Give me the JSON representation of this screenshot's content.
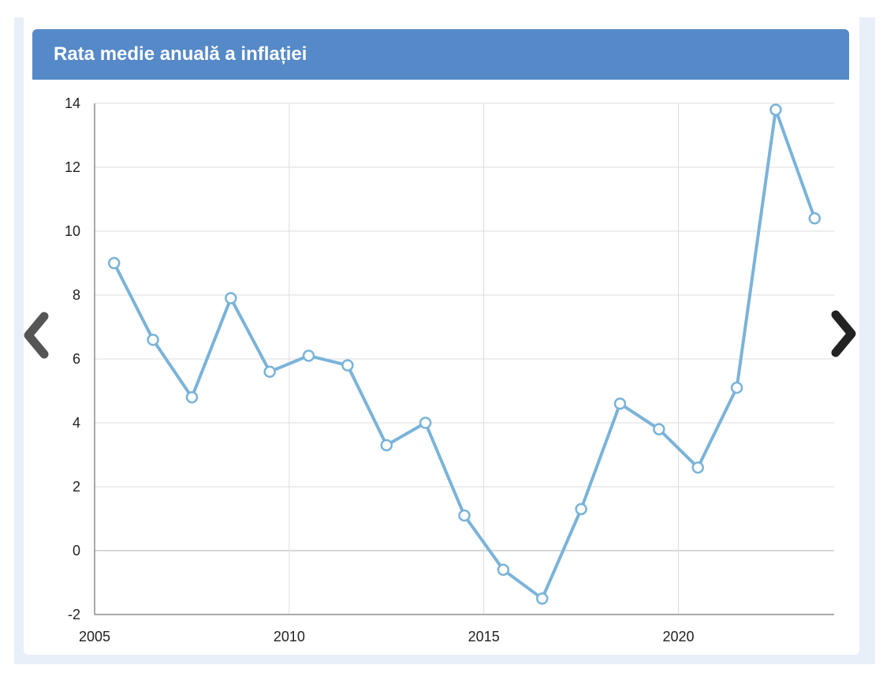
{
  "title": "Rata medie anuală a inflației",
  "nav": {
    "prev_icon": "chevron-left-icon",
    "next_icon": "chevron-right-icon"
  },
  "colors": {
    "header": "#5589c8",
    "series": "#7ab3d9",
    "background": "#e8eff9",
    "grid": "#dddddd",
    "arrow_prev": "#555555",
    "arrow_next": "#222222"
  },
  "chart_data": {
    "type": "line",
    "title": "Rata medie anuală a inflației",
    "xlabel": "",
    "ylabel": "",
    "xlim": [
      2005,
      2024
    ],
    "ylim": [
      -2,
      14
    ],
    "x_ticks": [
      "2005",
      "2010",
      "2015",
      "2020"
    ],
    "x_tick_values": [
      2005,
      2010,
      2015,
      2020
    ],
    "y_ticks": [
      "-2",
      "0",
      "2",
      "4",
      "6",
      "8",
      "10",
      "12",
      "14"
    ],
    "y_tick_values": [
      -2,
      0,
      2,
      4,
      6,
      8,
      10,
      12,
      14
    ],
    "grid": true,
    "legend": false,
    "x": [
      2005.5,
      2006.5,
      2007.5,
      2008.5,
      2009.5,
      2010.5,
      2011.5,
      2012.5,
      2013.5,
      2014.5,
      2015.5,
      2016.5,
      2017.5,
      2018.5,
      2019.5,
      2020.5,
      2021.5,
      2022.5,
      2023.5
    ],
    "y": [
      9.0,
      6.6,
      4.8,
      7.9,
      5.6,
      6.1,
      5.8,
      3.3,
      4.0,
      1.1,
      -0.6,
      -1.5,
      1.3,
      4.6,
      3.8,
      2.6,
      5.1,
      13.8,
      10.4
    ]
  }
}
